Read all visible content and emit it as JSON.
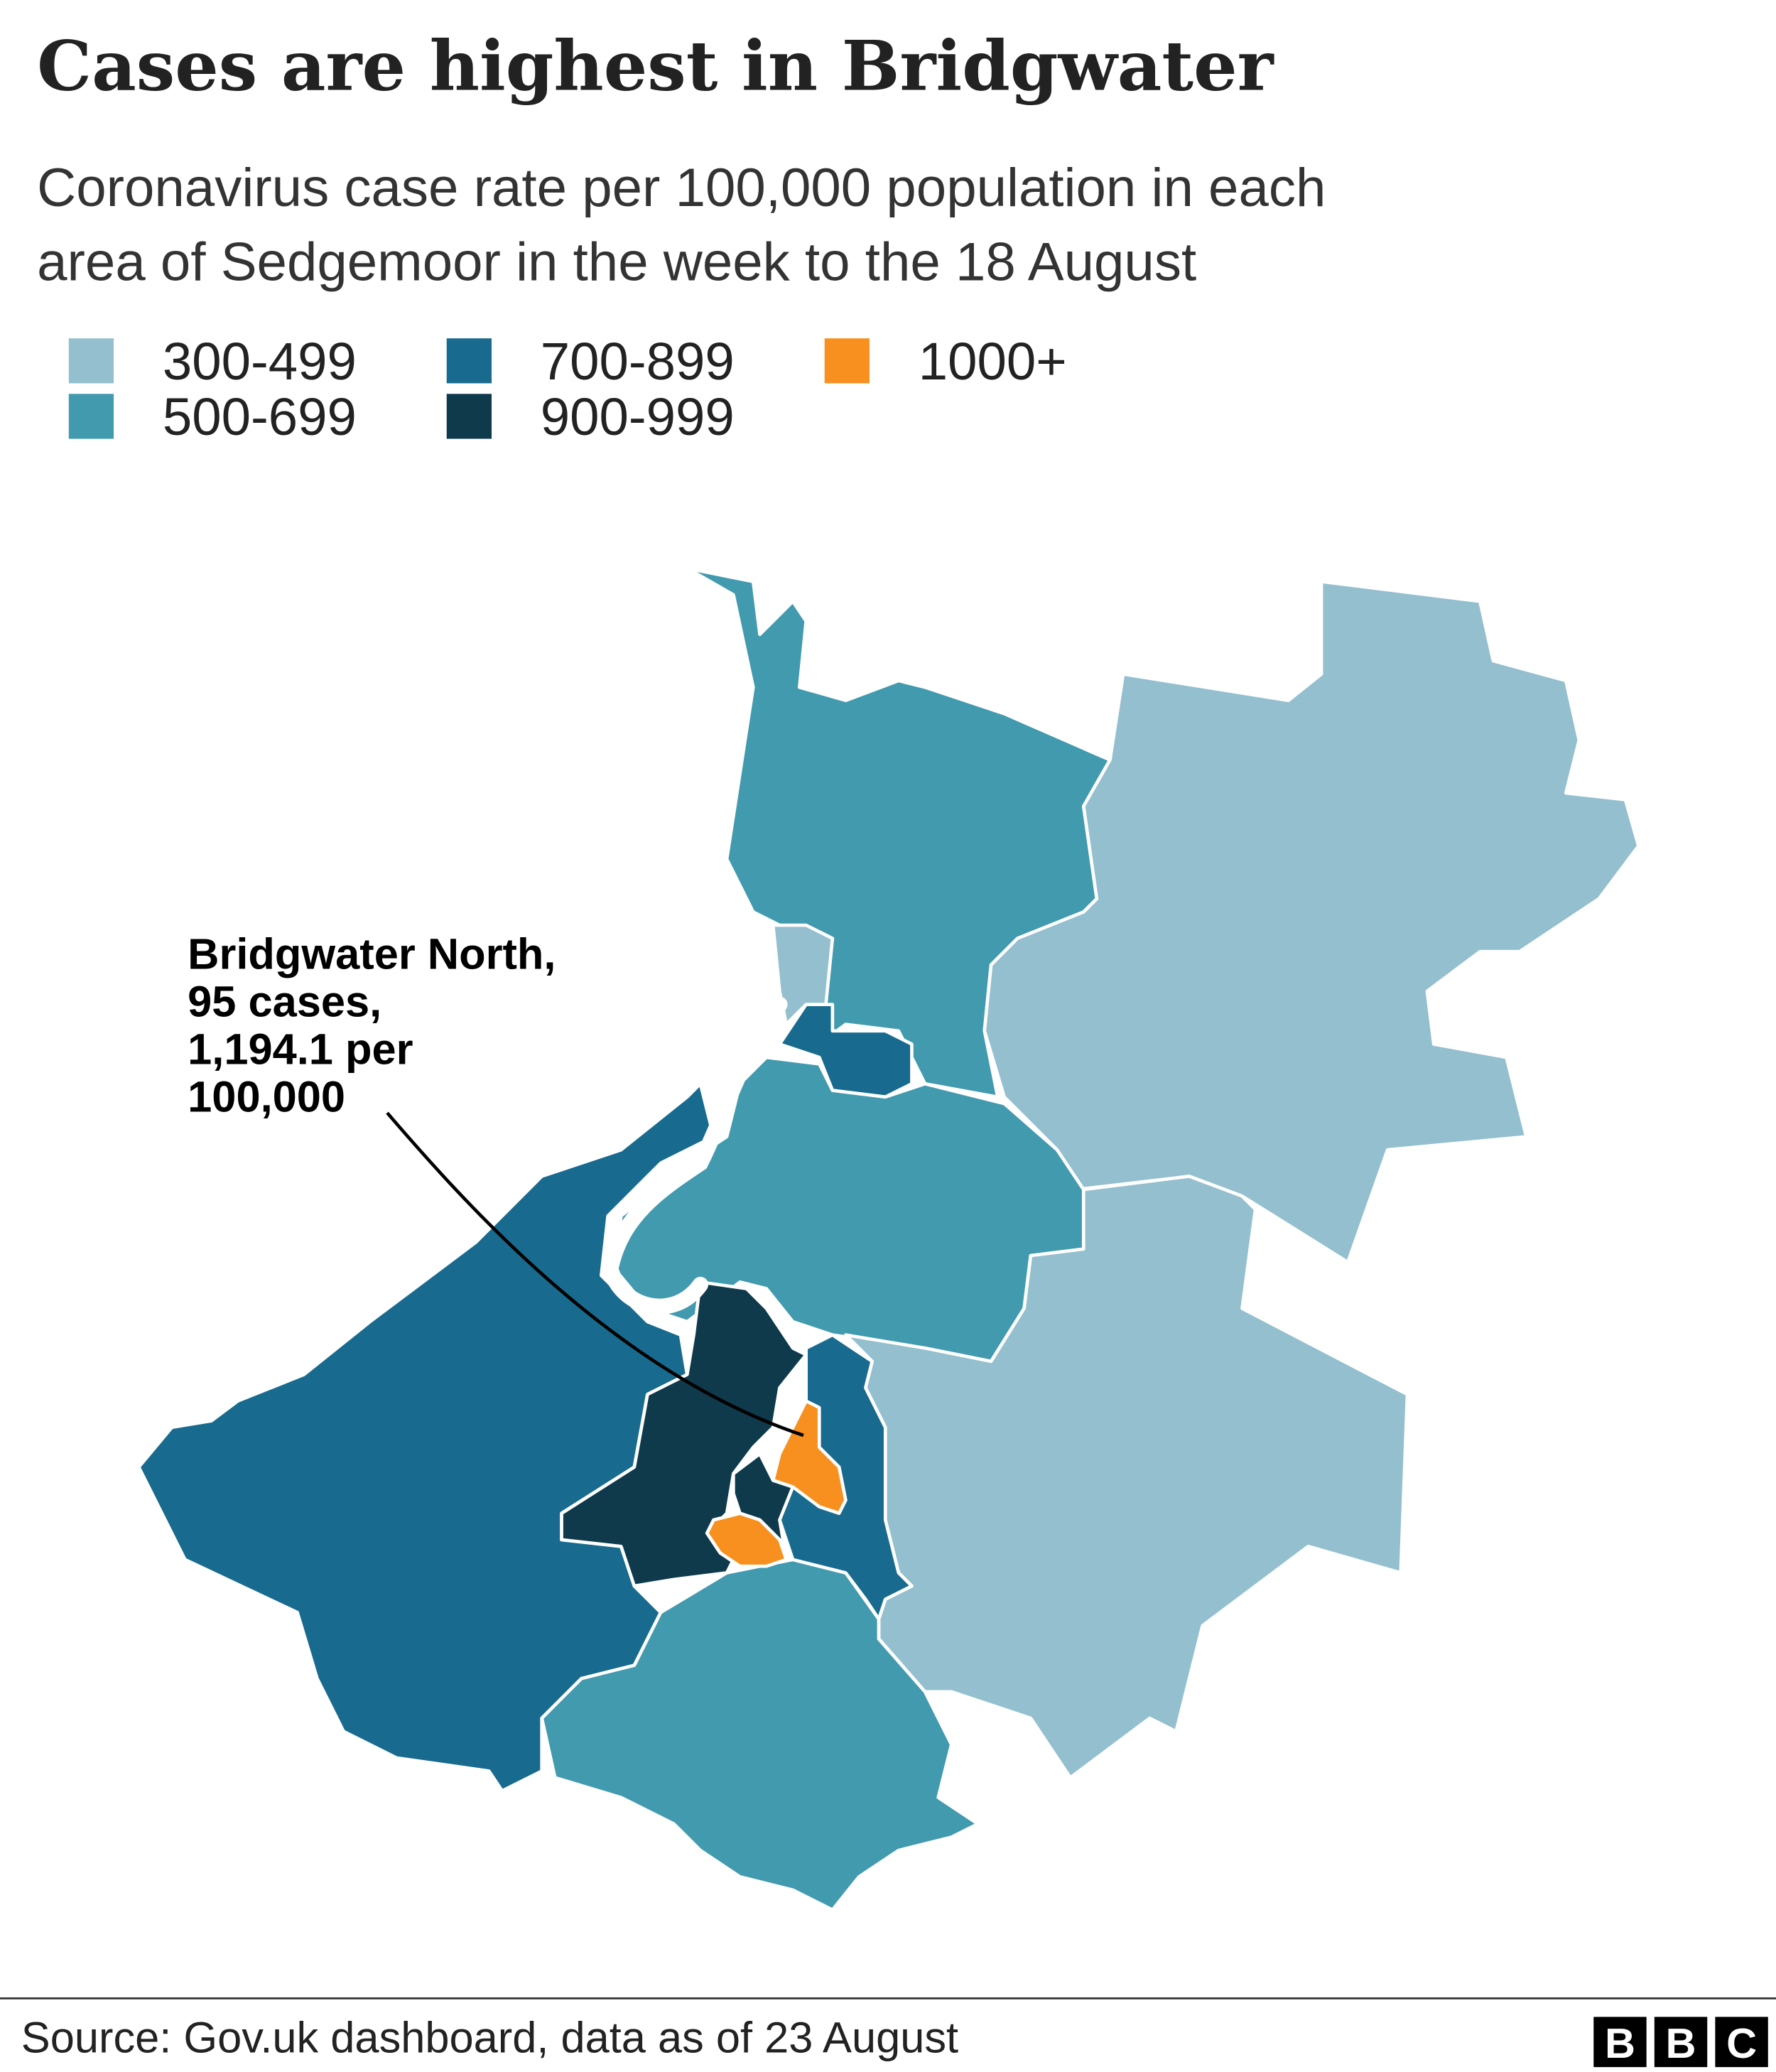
{
  "title": "Cases are highest in Bridgwater",
  "subtitle": [
    "Coronavirus case rate per 100,000 population in each",
    "area of Sedgemoor in the week to the 18 August"
  ],
  "legend": [
    {
      "label": "300-499",
      "color": "#93bfcf"
    },
    {
      "label": "500-699",
      "color": "#429aaf"
    },
    {
      "label": "700-899",
      "color": "#186b8e"
    },
    {
      "label": "900-999",
      "color": "#0e3a4c"
    },
    {
      "label": "1000+",
      "color": "#f7901e"
    }
  ],
  "annotation": [
    "Bridgwater North,",
    "95 cases,",
    "1,194.1 per",
    "100,000"
  ],
  "source": "Source: Gov.uk dashboard, data as of 23 August",
  "logo": [
    "B",
    "B",
    "C"
  ]
}
